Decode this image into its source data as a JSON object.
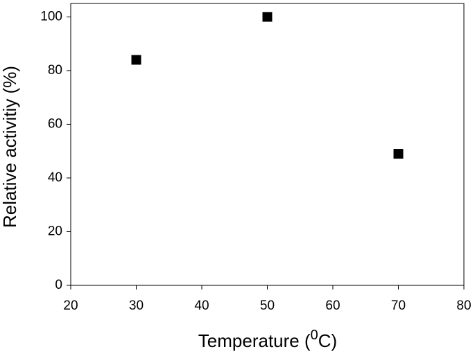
{
  "chart_data": {
    "type": "scatter",
    "x_label": [
      "Temperature (",
      "0",
      "C)"
    ],
    "y_label": "Relative activitiy (%)",
    "series": [
      {
        "color": "#000000",
        "x": [
          30,
          50,
          70
        ],
        "values": [
          84,
          100,
          49
        ]
      }
    ],
    "xlim": [
      20,
      80
    ],
    "xticks": [
      20,
      30,
      40,
      50,
      60,
      70,
      80
    ],
    "ylim": [
      0,
      105
    ],
    "yticks": [
      0,
      20,
      40,
      60,
      80,
      100
    ]
  }
}
